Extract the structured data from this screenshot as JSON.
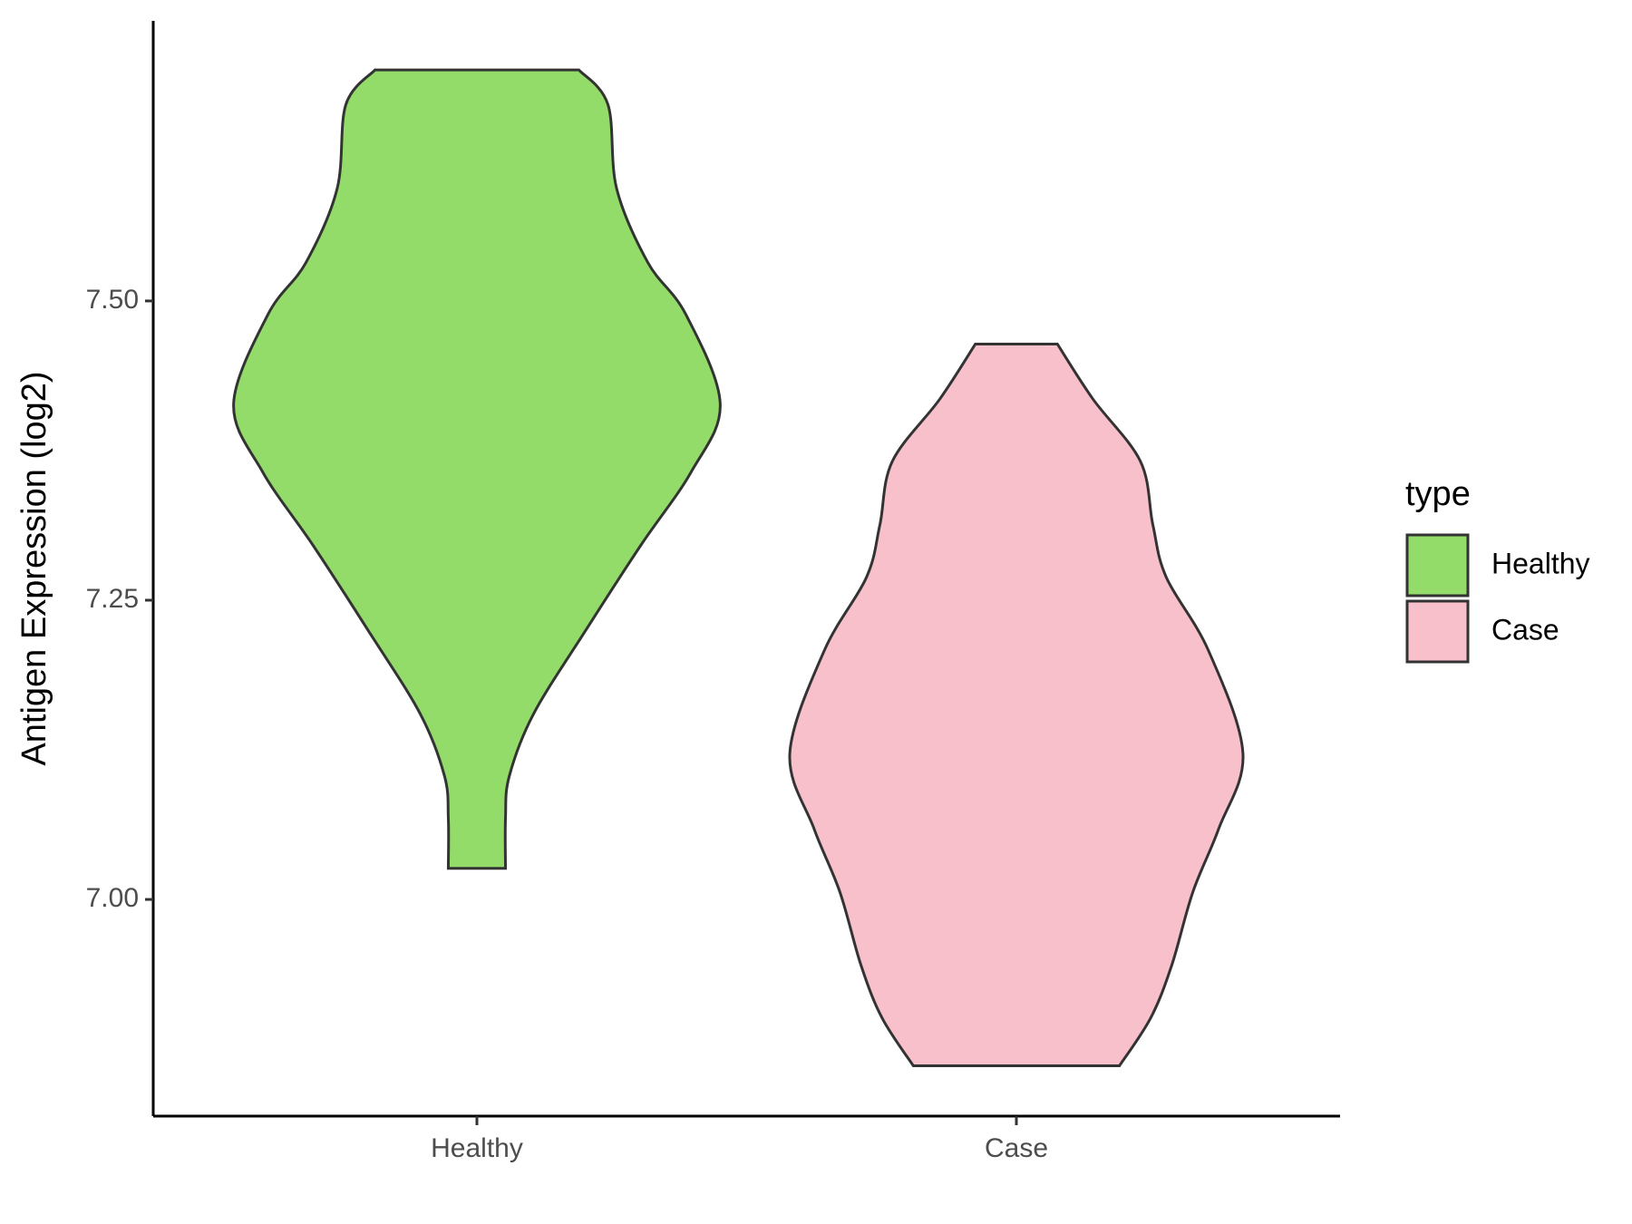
{
  "chart_data": {
    "type": "violin",
    "y_label": "Antigen Expression (log2)",
    "categories": [
      "Healthy",
      "Case"
    ],
    "legend_title": "type",
    "series": [
      {
        "name": "Healthy",
        "color": "#93dc6a",
        "y": [
          7.693,
          7.664,
          7.594,
          7.532,
          7.489,
          7.414,
          7.357,
          7.296,
          7.225,
          7.155,
          7.103,
          7.068,
          7.026
        ],
        "widths": [
          0.189,
          0.243,
          0.259,
          0.317,
          0.387,
          0.451,
          0.397,
          0.304,
          0.202,
          0.105,
          0.06,
          0.053,
          0.053
        ]
      },
      {
        "name": "Case",
        "color": "#f7c0cb",
        "y": [
          7.464,
          7.418,
          7.366,
          7.313,
          7.269,
          7.208,
          7.122,
          7.059,
          7.006,
          6.945,
          6.901,
          6.861
        ],
        "widths": [
          0.076,
          0.142,
          0.23,
          0.253,
          0.278,
          0.356,
          0.42,
          0.375,
          0.327,
          0.288,
          0.249,
          0.191
        ]
      }
    ],
    "ylim": [
      6.819,
      7.734
    ],
    "yticks": [
      {
        "value": 7.0,
        "label": "7.00"
      },
      {
        "value": 7.25,
        "label": "7.25"
      },
      {
        "value": 7.5,
        "label": "7.50"
      }
    ]
  }
}
